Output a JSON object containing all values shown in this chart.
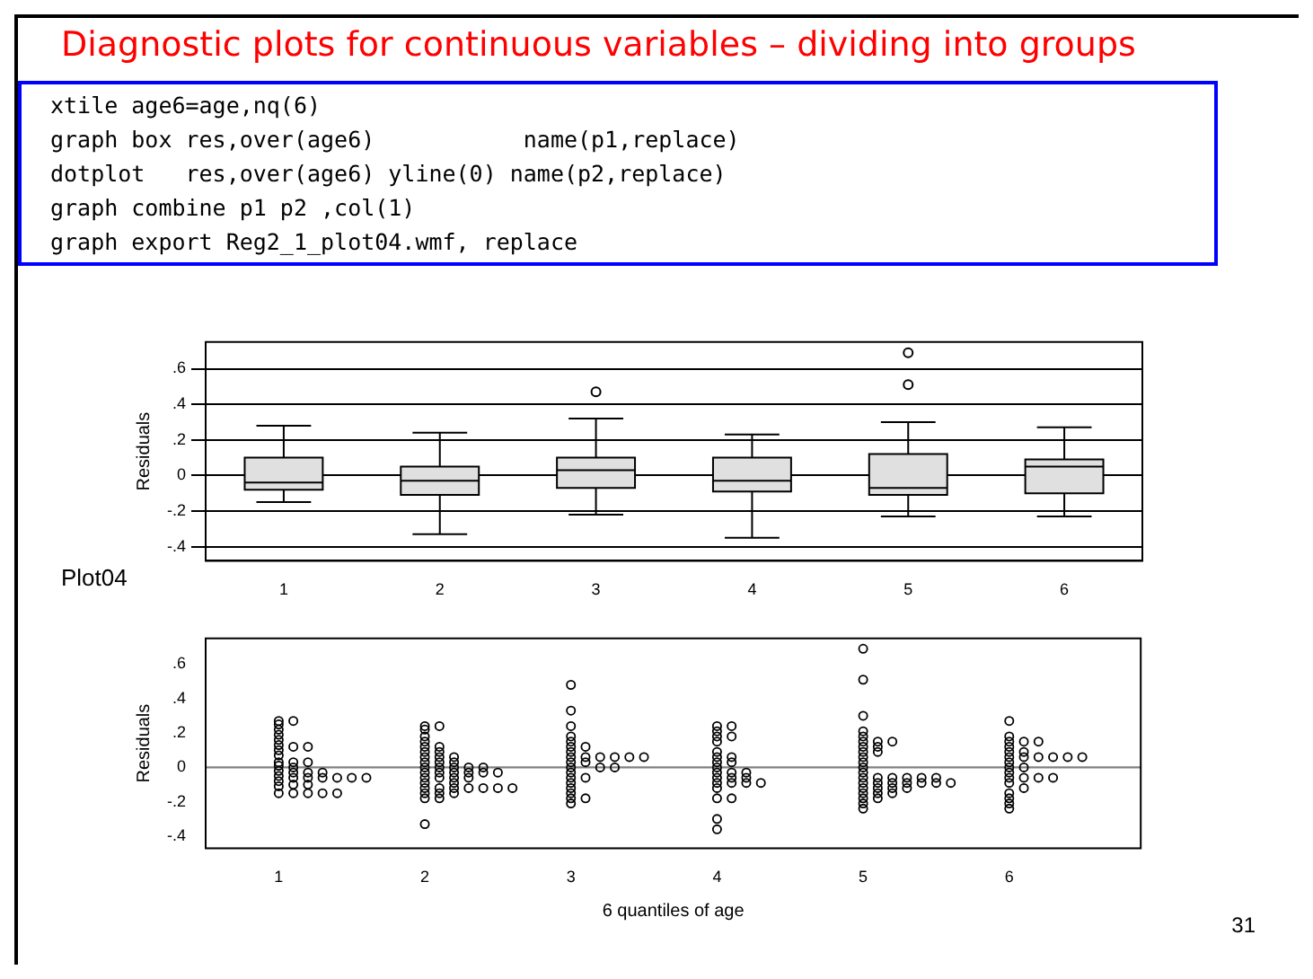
{
  "chart_data": [
    {
      "type": "box",
      "title": "Diagnostic plots for continuous variables – dividing into groups",
      "ylabel": "Residuals",
      "annotations": [
        "xtile age6=age,nq(6)",
        "graph box res,over(age6)           name(p1,replace)",
        "dotplot   res,over(age6) yline(0) name(p2,replace)",
        "graph combine p1 p2 ,col(1)",
        "graph export Reg2_1_plot04.wmf, replace",
        "Plot04"
      ],
      "categories": [
        "1",
        "2",
        "3",
        "4",
        "5",
        "6"
      ],
      "color": "#e0e0e0",
      "boxes": [
        {
          "low": -0.15,
          "q1": -0.08,
          "median": -0.04,
          "q3": 0.1,
          "high": 0.28
        },
        {
          "low": -0.33,
          "q1": -0.11,
          "median": -0.03,
          "q3": 0.05,
          "high": 0.24
        },
        {
          "low": -0.22,
          "q1": -0.07,
          "median": 0.03,
          "q3": 0.1,
          "high": 0.32,
          "outliers": [
            0.47
          ]
        },
        {
          "low": -0.35,
          "q1": -0.09,
          "median": -0.03,
          "q3": 0.1,
          "high": 0.23
        },
        {
          "low": -0.23,
          "q1": -0.11,
          "median": -0.07,
          "q3": 0.12,
          "high": 0.3,
          "outliers": [
            0.51,
            0.69
          ]
        },
        {
          "low": -0.23,
          "q1": -0.1,
          "median": 0.05,
          "q3": 0.09,
          "high": 0.27
        }
      ],
      "ylim": [
        -0.48,
        0.75
      ],
      "yticks": [
        {
          "value": -0.4,
          "label": "-.4"
        },
        {
          "value": -0.2,
          "label": "-.2"
        },
        0,
        {
          "value": 0.2,
          "label": ".2"
        },
        {
          "value": 0.4,
          "label": ".4"
        },
        {
          "value": 0.6,
          "label": ".6"
        }
      ],
      "grid": "y",
      "legend": false
    },
    {
      "type": "scatter",
      "xlabel": "6 quantiles of age",
      "ylabel": "Residuals",
      "annotations": [
        "31"
      ],
      "marker": "circle",
      "legend": false,
      "series": [
        {
          "color": "#000000",
          "x": [
            1,
            1,
            1,
            1,
            1,
            1,
            1,
            1,
            1,
            1,
            1,
            1,
            1,
            1,
            1,
            1.1,
            1.1,
            1.1,
            1.1,
            1.1,
            1.1,
            1.1,
            1.1,
            1.2,
            1.2,
            1.2,
            1.2,
            1.2,
            1.2,
            1.3,
            1.3,
            1.3,
            1.4,
            1.4,
            1.5,
            1.6,
            2,
            2,
            2,
            2,
            2,
            2,
            2,
            2,
            2,
            2,
            2,
            2,
            2,
            2,
            2,
            2,
            2.1,
            2.1,
            2.1,
            2.1,
            2.1,
            2.1,
            2.1,
            2.1,
            2.1,
            2.1,
            2.1,
            2.2,
            2.2,
            2.2,
            2.2,
            2.2,
            2.2,
            2.2,
            2.2,
            2.3,
            2.3,
            2.3,
            2.3,
            2.4,
            2.4,
            2.4,
            2.5,
            2.5,
            2.6,
            3,
            3,
            3,
            3,
            3,
            3,
            3,
            3,
            3,
            3,
            3,
            3,
            3,
            3,
            3,
            3,
            3,
            3.1,
            3.1,
            3.1,
            3.1,
            3.1,
            3.2,
            3.2,
            3.3,
            3.3,
            3.4,
            3.5,
            4,
            4,
            4,
            4,
            4,
            4,
            4,
            4,
            4,
            4,
            4,
            4,
            4,
            4,
            4,
            4.1,
            4.1,
            4.1,
            4.1,
            4.1,
            4.1,
            4.1,
            4.1,
            4.2,
            4.2,
            4.2,
            4.3,
            5,
            5,
            5,
            5,
            5,
            5,
            5,
            5,
            5,
            5,
            5,
            5,
            5,
            5,
            5,
            5,
            5,
            5,
            5,
            5.1,
            5.1,
            5.1,
            5.1,
            5.1,
            5.1,
            5.1,
            5.1,
            5.2,
            5.2,
            5.2,
            5.2,
            5.2,
            5.3,
            5.3,
            5.3,
            5.4,
            5.4,
            5.5,
            5.5,
            5.6,
            6,
            6,
            6,
            6,
            6,
            6,
            6,
            6,
            6,
            6,
            6,
            6,
            6,
            6,
            6,
            6.1,
            6.1,
            6.1,
            6.1,
            6.1,
            6.1,
            6.2,
            6.2,
            6.2,
            6.3,
            6.3,
            6.4,
            6.5
          ],
          "values": [
            0.27,
            0.25,
            0.22,
            0.19,
            0.16,
            0.13,
            0.1,
            0.07,
            0.03,
            0.01,
            -0.02,
            -0.05,
            -0.08,
            -0.11,
            -0.15,
            0.27,
            0.12,
            0.03,
            0,
            -0.03,
            -0.06,
            -0.1,
            -0.15,
            0.12,
            0.03,
            -0.03,
            -0.06,
            -0.1,
            -0.15,
            -0.03,
            -0.06,
            -0.15,
            -0.06,
            -0.15,
            -0.06,
            -0.06,
            0.24,
            0.22,
            0.18,
            0.15,
            0.12,
            0.09,
            0.06,
            0.03,
            0,
            -0.03,
            -0.06,
            -0.09,
            -0.12,
            -0.15,
            -0.18,
            -0.33,
            0.24,
            0.12,
            0.09,
            0.06,
            0.03,
            0,
            -0.03,
            -0.06,
            -0.12,
            -0.15,
            -0.18,
            0.06,
            0.03,
            0,
            -0.03,
            -0.06,
            -0.09,
            -0.12,
            -0.15,
            0,
            -0.03,
            -0.06,
            -0.12,
            0,
            -0.03,
            -0.12,
            -0.03,
            -0.12,
            -0.12,
            0.48,
            0.33,
            0.24,
            0.18,
            0.15,
            0.12,
            0.09,
            0.06,
            0.03,
            0,
            -0.03,
            -0.06,
            -0.09,
            -0.12,
            -0.15,
            -0.18,
            -0.21,
            0.12,
            0.06,
            0.03,
            -0.06,
            -0.18,
            0.06,
            0,
            0.06,
            0,
            0.06,
            0.06,
            0.24,
            0.21,
            0.18,
            0.15,
            0.09,
            0.06,
            0.03,
            0,
            -0.03,
            -0.06,
            -0.09,
            -0.12,
            -0.18,
            -0.3,
            -0.36,
            0.24,
            0.18,
            0.06,
            0.03,
            -0.03,
            -0.06,
            -0.09,
            -0.18,
            -0.03,
            -0.06,
            -0.09,
            -0.09,
            0.69,
            0.51,
            0.3,
            0.21,
            0.18,
            0.15,
            0.12,
            0.09,
            0.06,
            0.03,
            0,
            -0.03,
            -0.06,
            -0.09,
            -0.12,
            -0.15,
            -0.18,
            -0.21,
            -0.24,
            0.15,
            0.12,
            0.09,
            -0.06,
            -0.09,
            -0.12,
            -0.15,
            -0.18,
            0.15,
            -0.06,
            -0.09,
            -0.12,
            -0.15,
            -0.06,
            -0.09,
            -0.12,
            -0.06,
            -0.09,
            -0.06,
            -0.09,
            -0.09,
            0.27,
            0.18,
            0.15,
            0.12,
            0.09,
            0.06,
            0.03,
            0,
            -0.03,
            -0.06,
            -0.09,
            -0.15,
            -0.18,
            -0.21,
            -0.24,
            0.15,
            0.09,
            0.06,
            0,
            -0.06,
            -0.12,
            0.15,
            0.06,
            -0.06,
            0.06,
            -0.06,
            0.06,
            0.06
          ]
        }
      ],
      "xlim": [
        0.5,
        6.9
      ],
      "xticks": [
        1,
        2,
        3,
        4,
        5,
        6
      ],
      "ylim": [
        -0.47,
        0.75
      ],
      "yticks": [
        {
          "value": -0.4,
          "label": "-.4"
        },
        {
          "value": -0.2,
          "label": "-.2"
        },
        0,
        {
          "value": 0.2,
          "label": ".2"
        },
        {
          "value": 0.4,
          "label": ".4"
        },
        {
          "value": 0.6,
          "label": ".6"
        }
      ],
      "ref_lines": [
        {
          "axis": "y",
          "value": 0,
          "color": "#808080"
        }
      ]
    }
  ]
}
